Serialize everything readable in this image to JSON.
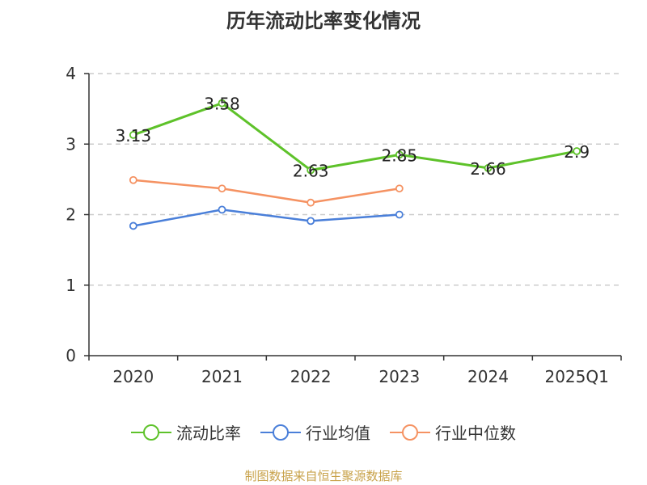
{
  "title": "历年流动比率变化情况",
  "source": "制图数据来自恒生聚源数据库",
  "chart_data": {
    "type": "line",
    "categories": [
      "2020",
      "2021",
      "2022",
      "2023",
      "2024",
      "2025Q1"
    ],
    "ylim": [
      0,
      4
    ],
    "yticks": [
      "0",
      "1",
      "2",
      "3",
      "4"
    ],
    "grid": true,
    "legend_position": "bottom",
    "series": [
      {
        "name": "流动比率",
        "color": "#5ec22a",
        "values": [
          3.13,
          3.58,
          2.63,
          2.85,
          2.66,
          2.9
        ],
        "labels": [
          "3.13",
          "3.58",
          "2.63",
          "2.85",
          "2.66",
          "2.9"
        ]
      },
      {
        "name": "行业均值",
        "color": "#4a7fd9",
        "values": [
          1.84,
          2.07,
          1.91,
          2.0,
          null,
          null
        ]
      },
      {
        "name": "行业中位数",
        "color": "#f59262",
        "values": [
          2.49,
          2.37,
          2.17,
          2.37,
          null,
          null
        ]
      }
    ]
  }
}
